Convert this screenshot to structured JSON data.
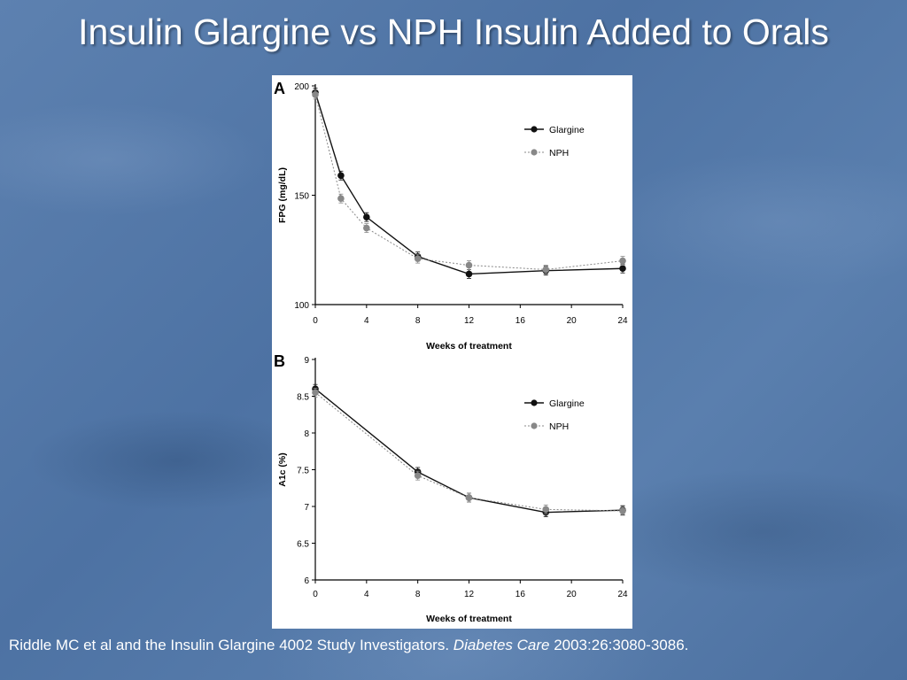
{
  "slide": {
    "title": "Insulin Glargine vs NPH Insulin Added to Orals"
  },
  "citation": {
    "authors": "Riddle MC et al and the Insulin Glargine 4002 Study Investigators. ",
    "journal": "Diabetes Care",
    "ref": " 2003:26:3080-3086",
    "end": "."
  },
  "colors": {
    "glargine": "#111111",
    "nph": "#888888",
    "background": "#4f74a5"
  },
  "chart_data": [
    {
      "panel_label": "A",
      "type": "line",
      "xlabel": "Weeks of treatment",
      "ylabel": "FPG (mg/dL)",
      "xlim": [
        0,
        24
      ],
      "ylim": [
        100,
        200
      ],
      "x_ticks": [
        0,
        4,
        8,
        12,
        16,
        20,
        24
      ],
      "y_ticks": [
        100,
        150,
        200
      ],
      "legend_position": "top-right",
      "series": [
        {
          "name": "Glargine",
          "style": "solid",
          "x": [
            0,
            2,
            4,
            8,
            12,
            18,
            24
          ],
          "y": [
            197,
            159,
            140,
            122,
            114,
            115.5,
            116.5
          ]
        },
        {
          "name": "NPH",
          "style": "dotted",
          "x": [
            0,
            2,
            4,
            8,
            12,
            18,
            24
          ],
          "y": [
            196,
            148.5,
            135,
            121,
            118,
            116,
            120
          ]
        }
      ]
    },
    {
      "panel_label": "B",
      "type": "line",
      "xlabel": "Weeks of treatment",
      "ylabel": "A1c (%)",
      "xlim": [
        0,
        24
      ],
      "ylim": [
        6,
        9
      ],
      "x_ticks": [
        0,
        4,
        8,
        12,
        16,
        20,
        24
      ],
      "y_ticks": [
        6,
        6.5,
        7,
        7.5,
        8,
        8.5,
        9
      ],
      "legend_position": "top-right",
      "series": [
        {
          "name": "Glargine",
          "style": "solid",
          "x": [
            0,
            8,
            12,
            18,
            24
          ],
          "y": [
            8.6,
            7.47,
            7.12,
            6.92,
            6.95
          ]
        },
        {
          "name": "NPH",
          "style": "dotted",
          "x": [
            0,
            8,
            12,
            18,
            24
          ],
          "y": [
            8.55,
            7.42,
            7.12,
            6.96,
            6.94
          ]
        }
      ]
    }
  ]
}
